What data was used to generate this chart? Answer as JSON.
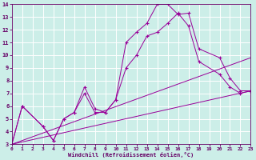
{
  "background_color": "#cceee8",
  "grid_color": "#ffffff",
  "line_color": "#990099",
  "xlabel": "Windchill (Refroidissement éolien,°C)",
  "xlabel_color": "#660066",
  "tick_color": "#660066",
  "xmin": 0,
  "xmax": 23,
  "ymin": 3,
  "ymax": 14,
  "lines": [
    {
      "x": [
        0,
        1,
        3,
        4,
        5,
        6,
        7,
        8,
        9,
        10,
        11,
        12,
        13,
        14,
        15,
        16,
        17,
        18,
        20,
        21,
        22,
        23
      ],
      "y": [
        3.0,
        6.0,
        4.4,
        3.3,
        5.0,
        5.5,
        7.0,
        5.5,
        5.5,
        6.5,
        11.0,
        11.8,
        12.5,
        14.0,
        14.0,
        13.2,
        13.3,
        10.5,
        9.8,
        8.2,
        7.2,
        7.2
      ],
      "marker": true
    },
    {
      "x": [
        0,
        1,
        3,
        4,
        5,
        6,
        7,
        8,
        9,
        10,
        11,
        12,
        13,
        14,
        15,
        16,
        17,
        18,
        20,
        21,
        22,
        23
      ],
      "y": [
        3.0,
        6.0,
        4.4,
        3.3,
        5.0,
        5.5,
        7.5,
        5.8,
        5.5,
        6.5,
        9.0,
        10.0,
        11.5,
        11.8,
        12.5,
        13.3,
        12.3,
        9.5,
        8.5,
        7.5,
        7.0,
        7.2
      ],
      "marker": true
    },
    {
      "x": [
        0,
        23
      ],
      "y": [
        3.0,
        7.2
      ],
      "marker": false
    },
    {
      "x": [
        0,
        23
      ],
      "y": [
        3.0,
        9.8
      ],
      "marker": false
    }
  ]
}
